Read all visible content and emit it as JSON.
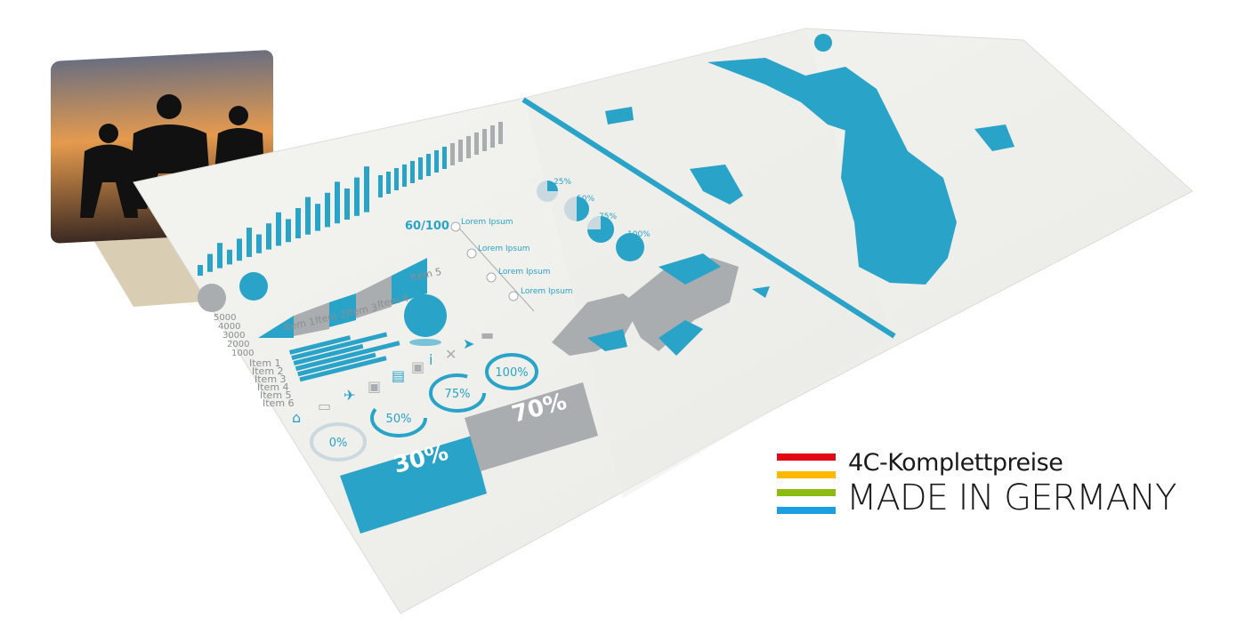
{
  "colors": {
    "accent": "#2aa3c9",
    "grey": "#a9adb0",
    "paper": "#f2f2ef",
    "red": "#e30613",
    "orange": "#fbb900",
    "green": "#8dbb10",
    "blue": "#1aa0e0"
  },
  "logo": {
    "line1": "4C-Komplettpreise",
    "line2": "MADE IN GERMANY"
  },
  "brochure": {
    "axis_labels": [
      "5000",
      "4000",
      "3000",
      "2000",
      "1000"
    ],
    "items_top": [
      "Item 1",
      "Item 2",
      "Item 3",
      "Item 4",
      "Item 5"
    ],
    "items_list": [
      "Item 1",
      "Item 2",
      "Item 3",
      "Item 4",
      "Item 5",
      "Item 6"
    ],
    "score": "60/100",
    "lorem": "Lorem Ipsum",
    "pie_labels": [
      "25%",
      "50%",
      "75%",
      "100%"
    ],
    "rings": [
      "0%",
      "50%",
      "75%",
      "100%"
    ],
    "box_blue": "30%",
    "box_grey": "70%",
    "icons": [
      "home-icon",
      "car-icon",
      "plane-icon",
      "train-icon",
      "bus-icon",
      "info-icon",
      "cutlery-icon",
      "send-icon",
      "bed-icon"
    ]
  }
}
